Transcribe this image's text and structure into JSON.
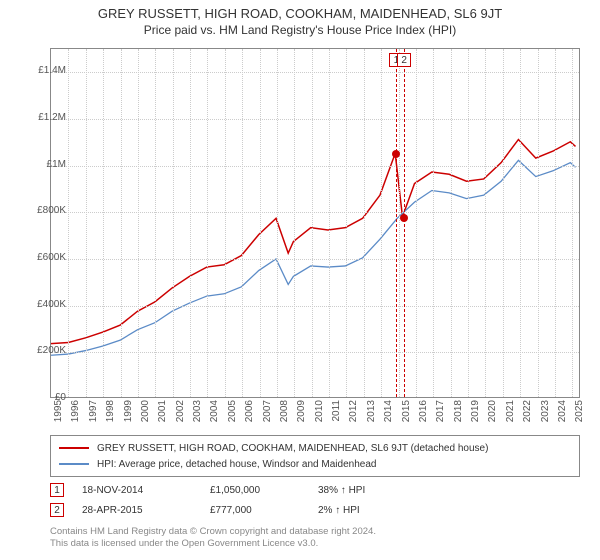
{
  "title": "GREY RUSSETT, HIGH ROAD, COOKHAM, MAIDENHEAD, SL6 9JT",
  "subtitle": "Price paid vs. HM Land Registry's House Price Index (HPI)",
  "chart": {
    "type": "line",
    "background_color": "#ffffff",
    "border_color": "#888888",
    "grid_color": "#cccccc",
    "title_fontsize": 13,
    "label_fontsize": 10,
    "x": {
      "min": 1995,
      "max": 2025.5,
      "ticks": [
        1995,
        1996,
        1997,
        1998,
        1999,
        2000,
        2001,
        2002,
        2003,
        2004,
        2005,
        2006,
        2007,
        2008,
        2009,
        2010,
        2011,
        2012,
        2013,
        2014,
        2015,
        2016,
        2017,
        2018,
        2019,
        2020,
        2021,
        2022,
        2023,
        2024,
        2025
      ]
    },
    "y": {
      "min": 0,
      "max": 1500000,
      "ticks": [
        0,
        200000,
        400000,
        600000,
        800000,
        1000000,
        1200000,
        1400000
      ],
      "tick_labels": [
        "£0",
        "£200K",
        "£400K",
        "£600K",
        "£800K",
        "£1M",
        "£1.2M",
        "£1.4M"
      ]
    },
    "series": [
      {
        "name": "property",
        "label": "GREY RUSSETT, HIGH ROAD, COOKHAM, MAIDENHEAD, SL6 9JT (detached house)",
        "color": "#cc0000",
        "line_width": 1.5,
        "data": [
          [
            1995,
            230000
          ],
          [
            1996,
            235000
          ],
          [
            1997,
            255000
          ],
          [
            1998,
            280000
          ],
          [
            1999,
            310000
          ],
          [
            2000,
            370000
          ],
          [
            2001,
            410000
          ],
          [
            2002,
            470000
          ],
          [
            2003,
            520000
          ],
          [
            2004,
            560000
          ],
          [
            2005,
            570000
          ],
          [
            2006,
            610000
          ],
          [
            2007,
            700000
          ],
          [
            2008,
            770000
          ],
          [
            2008.7,
            620000
          ],
          [
            2009,
            670000
          ],
          [
            2010,
            730000
          ],
          [
            2011,
            720000
          ],
          [
            2012,
            730000
          ],
          [
            2013,
            770000
          ],
          [
            2014,
            870000
          ],
          [
            2014.88,
            1050000
          ],
          [
            2015.3,
            777000
          ],
          [
            2016,
            920000
          ],
          [
            2017,
            970000
          ],
          [
            2018,
            960000
          ],
          [
            2019,
            930000
          ],
          [
            2020,
            940000
          ],
          [
            2021,
            1010000
          ],
          [
            2022,
            1110000
          ],
          [
            2023,
            1030000
          ],
          [
            2024,
            1060000
          ],
          [
            2025,
            1100000
          ],
          [
            2025.3,
            1080000
          ]
        ]
      },
      {
        "name": "hpi",
        "label": "HPI: Average price, detached house, Windsor and Maidenhead",
        "color": "#5b8bc7",
        "line_width": 1.3,
        "data": [
          [
            1995,
            180000
          ],
          [
            1996,
            185000
          ],
          [
            1997,
            200000
          ],
          [
            1998,
            220000
          ],
          [
            1999,
            245000
          ],
          [
            2000,
            290000
          ],
          [
            2001,
            320000
          ],
          [
            2002,
            370000
          ],
          [
            2003,
            405000
          ],
          [
            2004,
            435000
          ],
          [
            2005,
            445000
          ],
          [
            2006,
            475000
          ],
          [
            2007,
            545000
          ],
          [
            2008,
            595000
          ],
          [
            2008.7,
            485000
          ],
          [
            2009,
            520000
          ],
          [
            2010,
            565000
          ],
          [
            2011,
            560000
          ],
          [
            2012,
            565000
          ],
          [
            2013,
            600000
          ],
          [
            2014,
            680000
          ],
          [
            2015,
            770000
          ],
          [
            2016,
            840000
          ],
          [
            2017,
            890000
          ],
          [
            2018,
            880000
          ],
          [
            2019,
            855000
          ],
          [
            2020,
            870000
          ],
          [
            2021,
            930000
          ],
          [
            2022,
            1020000
          ],
          [
            2023,
            950000
          ],
          [
            2024,
            975000
          ],
          [
            2025,
            1010000
          ],
          [
            2025.3,
            990000
          ]
        ]
      }
    ],
    "markers": [
      {
        "id": "1",
        "x": 2014.88,
        "y": 1050000,
        "color": "#cc0000",
        "box_above": true
      },
      {
        "id": "2",
        "x": 2015.32,
        "y": 777000,
        "color": "#cc0000",
        "box_above": true
      }
    ]
  },
  "legend": {
    "border_color": "#888888",
    "items": [
      {
        "color": "#cc0000",
        "label": "GREY RUSSETT, HIGH ROAD, COOKHAM, MAIDENHEAD, SL6 9JT (detached house)"
      },
      {
        "color": "#5b8bc7",
        "label": "HPI: Average price, detached house, Windsor and Maidenhead"
      }
    ]
  },
  "transactions": [
    {
      "marker": "1",
      "date": "18-NOV-2014",
      "price": "£1,050,000",
      "pct": "38% ↑ HPI"
    },
    {
      "marker": "2",
      "date": "28-APR-2015",
      "price": "£777,000",
      "pct": "2% ↑ HPI"
    }
  ],
  "footer": {
    "line1": "Contains HM Land Registry data © Crown copyright and database right 2024.",
    "line2": "This data is licensed under the Open Government Licence v3.0."
  }
}
